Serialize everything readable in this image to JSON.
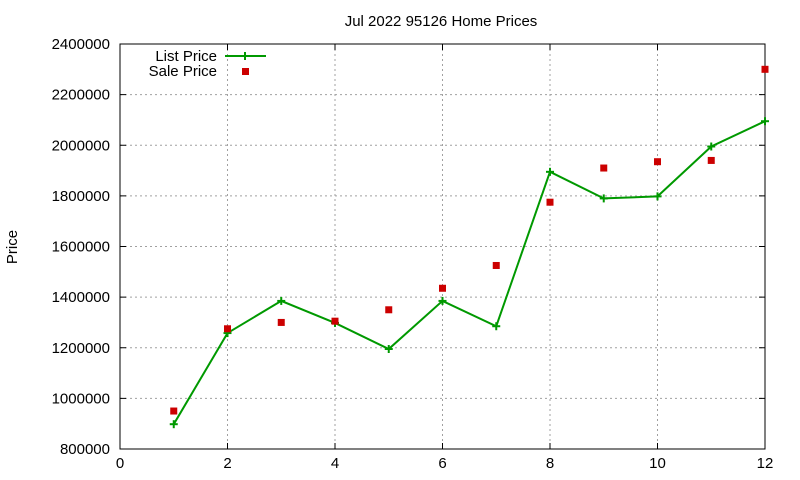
{
  "chart_data": {
    "type": "line",
    "title": "Jul 2022 95126 Home Prices",
    "xlabel": "",
    "ylabel": "Price",
    "xlim": [
      0,
      12
    ],
    "ylim": [
      800000,
      2400000
    ],
    "x_ticks": [
      "0",
      "2",
      "4",
      "6",
      "8",
      "10",
      "12"
    ],
    "y_ticks": [
      "800000",
      "1000000",
      "1200000",
      "1400000",
      "1600000",
      "1800000",
      "2000000",
      "2200000",
      "2400000"
    ],
    "grid": true,
    "legend_position": "top-left",
    "series": [
      {
        "name": "List Price",
        "style": "lines+points",
        "marker": "plus",
        "color": "#009900",
        "x": [
          1,
          2,
          3,
          4,
          5,
          6,
          7,
          8,
          9,
          10,
          11,
          12
        ],
        "y": [
          898000,
          1258000,
          1385000,
          1298000,
          1195000,
          1385000,
          1285000,
          1895000,
          1790000,
          1798000,
          1995000,
          2095000
        ]
      },
      {
        "name": "Sale Price",
        "style": "points",
        "marker": "square",
        "color": "#cc0000",
        "x": [
          1,
          2,
          3,
          4,
          5,
          6,
          7,
          8,
          9,
          10,
          11,
          12
        ],
        "y": [
          950000,
          1275000,
          1300000,
          1305000,
          1350000,
          1435000,
          1525000,
          1775000,
          1910000,
          1935000,
          1940000,
          2300000
        ]
      }
    ]
  }
}
